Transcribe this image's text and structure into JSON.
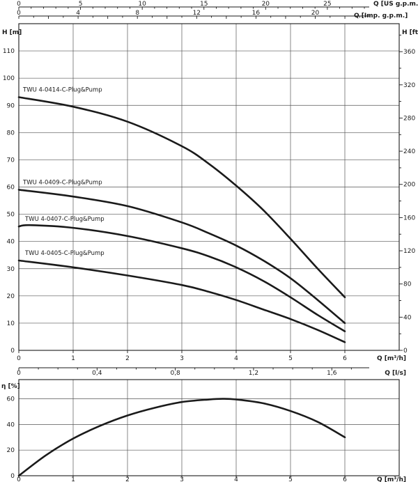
{
  "chart_data": [
    {
      "type": "line",
      "name_top_axis_1": "Q [US g.p.m.]",
      "name_top_axis_2": "Q [Imp. g.p.m.]",
      "top_axis_1": {
        "label": "Q [US g.p.m.]",
        "ticks": [
          "0",
          "5",
          "10",
          "15",
          "20",
          "25"
        ],
        "tick_values": [
          0,
          5,
          10,
          15,
          20,
          25
        ]
      },
      "top_axis_2": {
        "label": "Q [Imp. g.p.m.]",
        "ticks": [
          "0",
          "4",
          "8",
          "12",
          "16",
          "20"
        ],
        "tick_values": [
          0,
          4,
          8,
          12,
          16,
          20
        ]
      },
      "xlabel": "Q [m³/h]",
      "x_ticks": [
        "0",
        "1",
        "2",
        "3",
        "4",
        "5",
        "6"
      ],
      "xlim": [
        0,
        6.5
      ],
      "ylabel": "H [m]",
      "ylim": [
        0,
        120
      ],
      "y_ticks": [
        "0",
        "10",
        "20",
        "30",
        "40",
        "50",
        "60",
        "70",
        "80",
        "90",
        "100",
        "110"
      ],
      "y2label": "H [ft]",
      "y2_ticks": [
        "0",
        "40",
        "80",
        "120",
        "160",
        "200",
        "240",
        "280",
        "320",
        "360"
      ],
      "grid": true,
      "series": [
        {
          "name": "TWU 4-0414-C-Plug&Pump",
          "x": [
            0,
            1,
            2,
            3,
            3.5,
            4,
            4.5,
            5,
            5.5,
            6
          ],
          "y": [
            93,
            89.5,
            84,
            75,
            68.5,
            60.5,
            51.5,
            41,
            30,
            19.5
          ]
        },
        {
          "name": "TWU 4-0409-C-Plug&Pump",
          "x": [
            0,
            1,
            2,
            3,
            3.5,
            4,
            4.5,
            5,
            5.5,
            6
          ],
          "y": [
            59,
            56.5,
            53,
            47,
            43,
            38.5,
            33,
            26.5,
            18.5,
            10
          ]
        },
        {
          "name": "TWU 4-0407-C-Plug&Pump",
          "x": [
            0,
            0.2,
            1,
            2,
            3,
            3.5,
            4,
            4.5,
            5,
            5.5,
            6
          ],
          "y": [
            45.5,
            46,
            45,
            42,
            37.5,
            34.5,
            30.5,
            25.5,
            19.5,
            13,
            7
          ]
        },
        {
          "name": "TWU 4-0405-C-Plug&Pump",
          "x": [
            0,
            1,
            2,
            3,
            3.5,
            4,
            4.5,
            5,
            5.5,
            6
          ],
          "y": [
            33,
            30.5,
            27.5,
            24,
            21.5,
            18.5,
            15,
            11.5,
            7.5,
            3
          ]
        }
      ]
    },
    {
      "type": "line",
      "top_axis": {
        "label": "Q [l/s]",
        "ticks": [
          "0",
          "0,4",
          "0,8",
          "1,2",
          "1,6"
        ],
        "tick_values": [
          0,
          0.4,
          0.8,
          1.2,
          1.6
        ]
      },
      "xlabel": "Q [m³/h]",
      "x_ticks": [
        "0",
        "1",
        "2",
        "3",
        "4",
        "5",
        "6"
      ],
      "xlim": [
        0,
        6.5
      ],
      "ylabel": "η [%]",
      "ylim": [
        0,
        75
      ],
      "y_ticks": [
        "0",
        "20",
        "40",
        "60"
      ],
      "grid": true,
      "series": [
        {
          "name": "",
          "x": [
            0,
            0.5,
            1,
            1.5,
            2,
            2.5,
            3,
            3.5,
            3.75,
            4,
            4.5,
            5,
            5.5,
            6
          ],
          "y": [
            0,
            16,
            29,
            39,
            47,
            53,
            57.5,
            59.5,
            60,
            59.5,
            56.5,
            50.5,
            42,
            30
          ]
        }
      ]
    }
  ]
}
